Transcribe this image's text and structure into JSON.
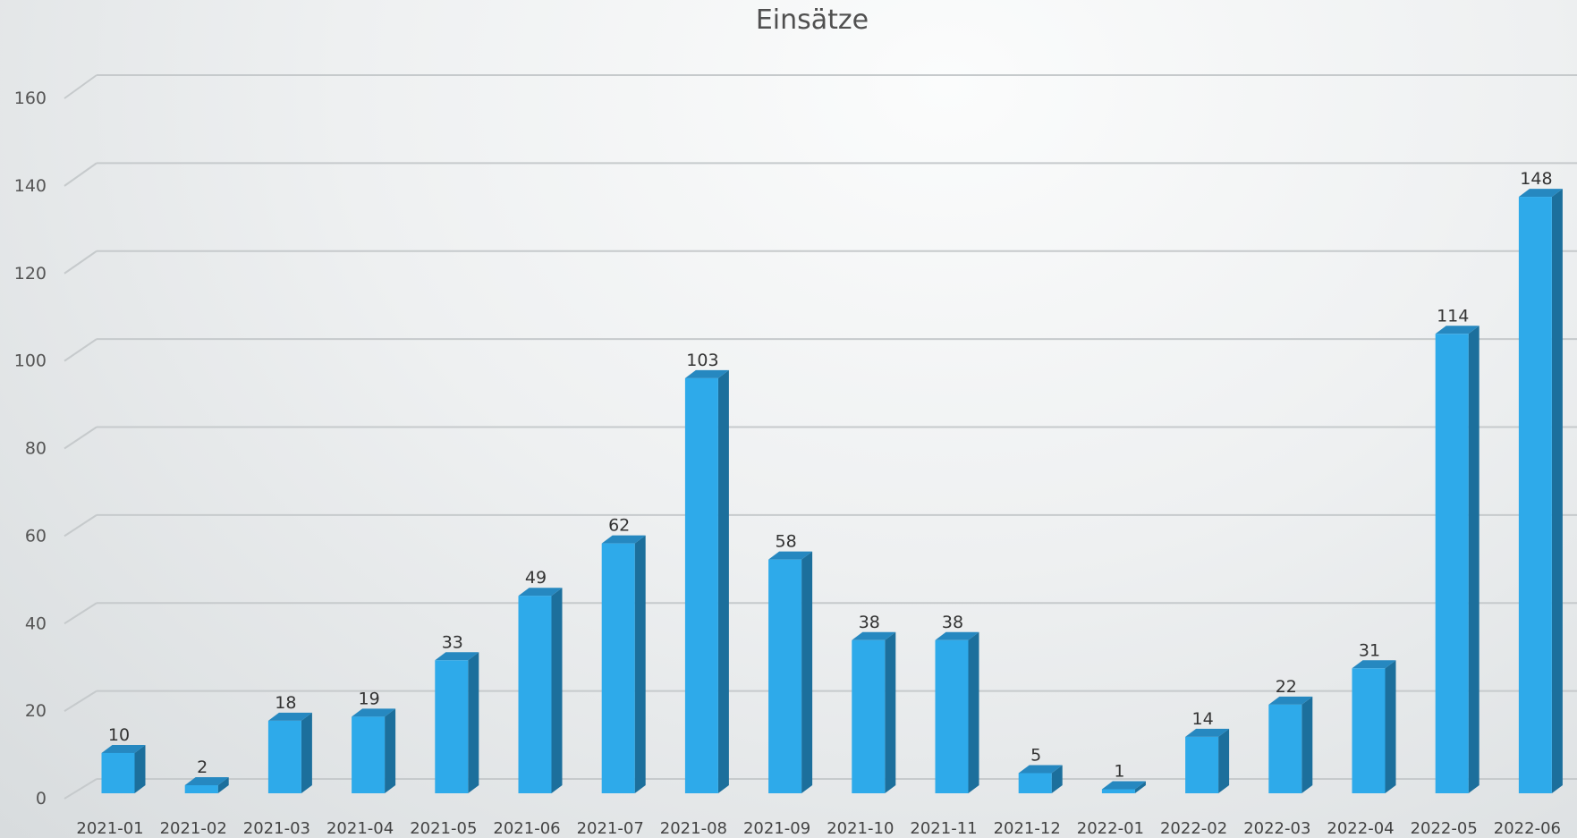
{
  "chart_data": {
    "type": "bar",
    "title": "Einsätze",
    "xlabel": "",
    "ylabel": "",
    "ylim": [
      0,
      160
    ],
    "yticks": [
      0,
      20,
      40,
      60,
      80,
      100,
      120,
      140,
      160
    ],
    "grid": true,
    "legend": "none",
    "style": "3d-column",
    "categories": [
      "2021-01",
      "2021-02",
      "2021-03",
      "2021-04",
      "2021-05",
      "2021-06",
      "2021-07",
      "2021-08",
      "2021-09",
      "2021-10",
      "2021-11",
      "2021-12",
      "2022-01",
      "2022-02",
      "2022-03",
      "2022-04",
      "2022-05",
      "2022-06"
    ],
    "values": [
      10,
      2,
      18,
      19,
      33,
      49,
      62,
      103,
      58,
      38,
      38,
      5,
      1,
      14,
      22,
      31,
      114,
      148
    ],
    "colors": {
      "front": "#2eaaea",
      "side": "#1c6f9c",
      "top": "#2688c0",
      "grid": "#c6cacc"
    }
  }
}
